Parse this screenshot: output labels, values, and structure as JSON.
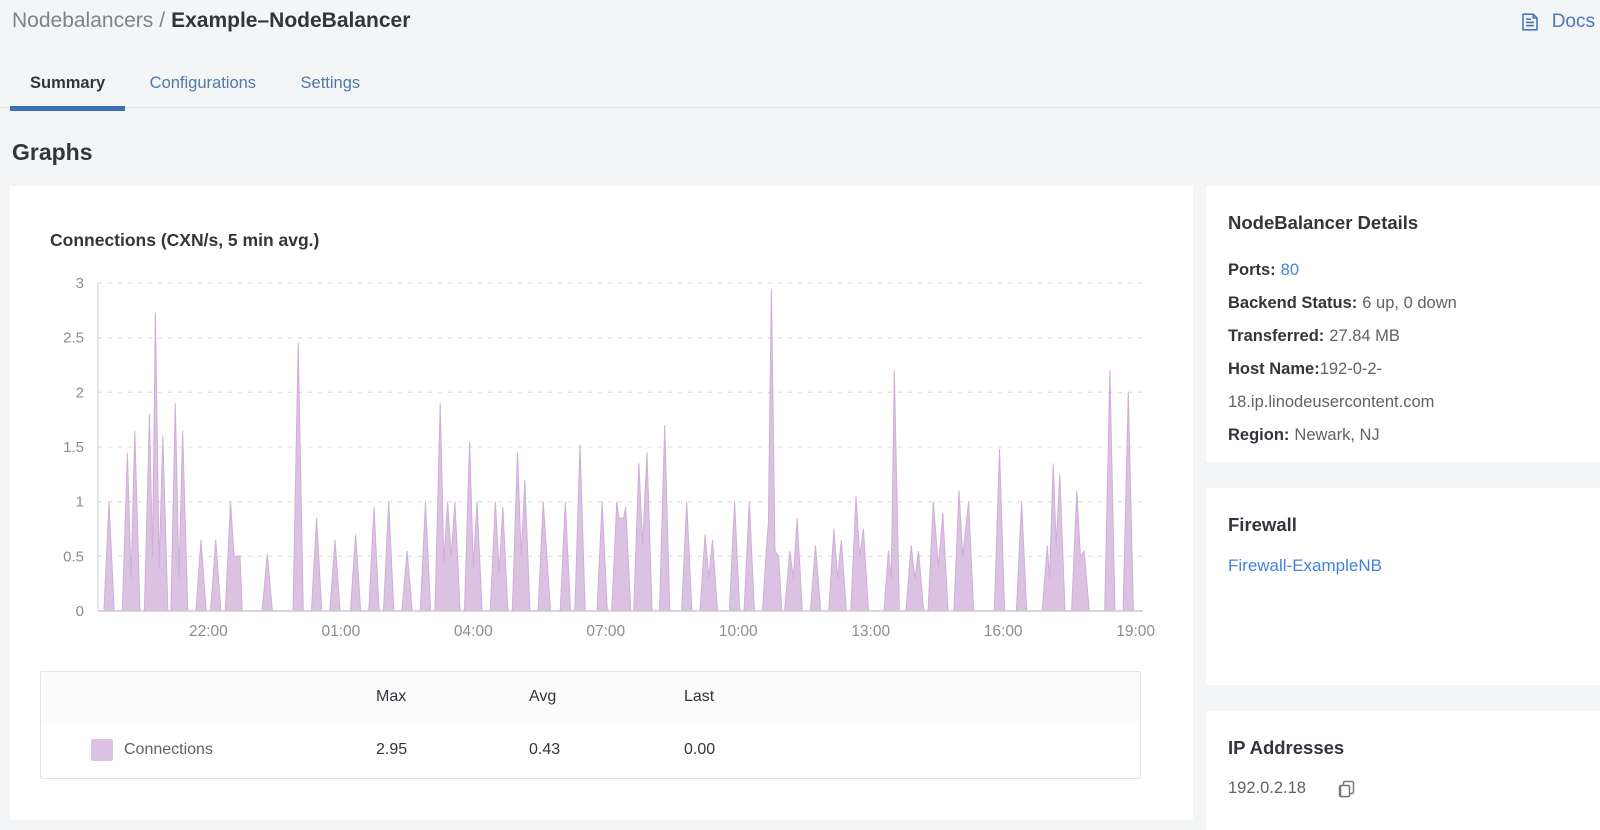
{
  "breadcrumb": {
    "section": "Nodebalancers",
    "separator": "/",
    "entity": "Example–NodeBalancer"
  },
  "docs": {
    "label": "Docs"
  },
  "tabs": [
    {
      "label": "Summary",
      "active": true
    },
    {
      "label": "Configurations",
      "active": false
    },
    {
      "label": "Settings",
      "active": false
    }
  ],
  "section_title": "Graphs",
  "chart": {
    "title": "Connections (CXN/s, 5 min avg.)",
    "legend": {
      "columns": {
        "max": "Max",
        "avg": "Avg",
        "last": "Last"
      },
      "row": {
        "label": "Connections",
        "swatch": "#dcc2e2",
        "max": "2.95",
        "avg": "0.43",
        "last": "0.00"
      }
    }
  },
  "chart_data": {
    "type": "area",
    "title": "Connections (CXN/s, 5 min avg.)",
    "series_name": "Connections",
    "unit": "CXN/s",
    "ylim": [
      0,
      3
    ],
    "y_ticks": [
      0,
      0.5,
      1,
      1.5,
      2,
      2.5,
      3
    ],
    "x_axis": "time of day, 24h window, start 19:30",
    "x_max_minutes": 1420,
    "x_ticks": [
      {
        "label": "22:00",
        "t": 150
      },
      {
        "label": "01:00",
        "t": 330
      },
      {
        "label": "04:00",
        "t": 510
      },
      {
        "label": "07:00",
        "t": 690
      },
      {
        "label": "10:00",
        "t": 870
      },
      {
        "label": "13:00",
        "t": 1050
      },
      {
        "label": "16:00",
        "t": 1230
      },
      {
        "label": "19:00",
        "t": 1410
      }
    ],
    "stats": {
      "max": 2.95,
      "avg": 0.43,
      "last": 0.0
    },
    "colors": {
      "fill": "#dcc2e2",
      "line": "#cfaed8",
      "grid": "#e0e2e5",
      "axis": "#c9cbce",
      "tick_text": "#8a8d92"
    },
    "grid": true,
    "legend_position": "bottom-table",
    "points": [
      [
        0,
        0
      ],
      [
        8,
        0
      ],
      [
        15,
        1.0
      ],
      [
        22,
        0
      ],
      [
        33,
        0
      ],
      [
        40,
        1.45
      ],
      [
        45,
        0.3
      ],
      [
        50,
        1.65
      ],
      [
        57,
        0
      ],
      [
        63,
        0
      ],
      [
        70,
        1.8
      ],
      [
        74,
        0.5
      ],
      [
        78,
        2.73
      ],
      [
        83,
        0.4
      ],
      [
        88,
        1.6
      ],
      [
        95,
        0
      ],
      [
        99,
        0
      ],
      [
        105,
        1.9
      ],
      [
        110,
        0.3
      ],
      [
        115,
        1.65
      ],
      [
        122,
        0
      ],
      [
        133,
        0
      ],
      [
        140,
        0.65
      ],
      [
        147,
        0
      ],
      [
        153,
        0
      ],
      [
        160,
        0.65
      ],
      [
        167,
        0
      ],
      [
        173,
        0
      ],
      [
        180,
        1.0
      ],
      [
        185,
        0.5
      ],
      [
        193,
        0.5
      ],
      [
        196,
        0
      ],
      [
        223,
        0
      ],
      [
        230,
        0.52
      ],
      [
        237,
        0
      ],
      [
        265,
        0
      ],
      [
        272,
        2.45
      ],
      [
        279,
        0
      ],
      [
        290,
        0
      ],
      [
        297,
        0.85
      ],
      [
        304,
        0
      ],
      [
        315,
        0
      ],
      [
        322,
        0.65
      ],
      [
        329,
        0
      ],
      [
        343,
        0
      ],
      [
        350,
        0.7
      ],
      [
        357,
        0
      ],
      [
        368,
        0
      ],
      [
        375,
        0.95
      ],
      [
        382,
        0
      ],
      [
        388,
        0
      ],
      [
        395,
        1.0
      ],
      [
        402,
        0
      ],
      [
        413,
        0
      ],
      [
        420,
        0.55
      ],
      [
        427,
        0
      ],
      [
        438,
        0
      ],
      [
        445,
        1.0
      ],
      [
        452,
        0
      ],
      [
        458,
        0
      ],
      [
        465,
        1.9
      ],
      [
        470,
        0.45
      ],
      [
        475,
        1.0
      ],
      [
        480,
        0.5
      ],
      [
        485,
        1.0
      ],
      [
        492,
        0
      ],
      [
        498,
        0
      ],
      [
        505,
        1.55
      ],
      [
        510,
        0.4
      ],
      [
        515,
        1.0
      ],
      [
        522,
        0
      ],
      [
        533,
        0
      ],
      [
        540,
        1.0
      ],
      [
        545,
        0.35
      ],
      [
        550,
        0.95
      ],
      [
        557,
        0
      ],
      [
        563,
        0
      ],
      [
        570,
        1.45
      ],
      [
        575,
        0.5
      ],
      [
        580,
        1.2
      ],
      [
        587,
        0
      ],
      [
        598,
        0
      ],
      [
        605,
        1.0
      ],
      [
        615,
        0
      ],
      [
        628,
        0
      ],
      [
        635,
        1.0
      ],
      [
        642,
        0
      ],
      [
        648,
        0
      ],
      [
        655,
        1.52
      ],
      [
        662,
        0
      ],
      [
        678,
        0
      ],
      [
        685,
        1.0
      ],
      [
        692,
        0
      ],
      [
        698,
        0
      ],
      [
        705,
        1.0
      ],
      [
        708,
        0.85
      ],
      [
        714,
        0.85
      ],
      [
        717,
        0.95
      ],
      [
        724,
        0
      ],
      [
        728,
        0
      ],
      [
        735,
        1.35
      ],
      [
        740,
        0.6
      ],
      [
        746,
        1.45
      ],
      [
        753,
        0
      ],
      [
        763,
        0
      ],
      [
        770,
        1.7
      ],
      [
        777,
        0
      ],
      [
        793,
        0
      ],
      [
        800,
        1.0
      ],
      [
        807,
        0
      ],
      [
        818,
        0
      ],
      [
        825,
        0.7
      ],
      [
        830,
        0.3
      ],
      [
        835,
        0.65
      ],
      [
        842,
        0
      ],
      [
        858,
        0
      ],
      [
        865,
        1.0
      ],
      [
        872,
        0
      ],
      [
        878,
        0
      ],
      [
        885,
        1.0
      ],
      [
        892,
        0
      ],
      [
        903,
        0
      ],
      [
        908,
        0.55
      ],
      [
        911,
        0.8
      ],
      [
        915,
        2.95
      ],
      [
        920,
        0.55
      ],
      [
        925,
        0.5
      ],
      [
        929,
        0
      ],
      [
        933,
        0
      ],
      [
        940,
        0.55
      ],
      [
        945,
        0.3
      ],
      [
        950,
        0.85
      ],
      [
        957,
        0
      ],
      [
        968,
        0
      ],
      [
        975,
        0.6
      ],
      [
        982,
        0
      ],
      [
        993,
        0
      ],
      [
        1000,
        0.75
      ],
      [
        1005,
        0.3
      ],
      [
        1010,
        0.65
      ],
      [
        1017,
        0
      ],
      [
        1023,
        0
      ],
      [
        1030,
        1.05
      ],
      [
        1035,
        0.5
      ],
      [
        1040,
        0.75
      ],
      [
        1047,
        0
      ],
      [
        1068,
        0
      ],
      [
        1074,
        0.55
      ],
      [
        1078,
        0.3
      ],
      [
        1082,
        2.2
      ],
      [
        1089,
        0
      ],
      [
        1098,
        0
      ],
      [
        1105,
        0.6
      ],
      [
        1110,
        0.3
      ],
      [
        1115,
        0.55
      ],
      [
        1122,
        0
      ],
      [
        1128,
        0
      ],
      [
        1135,
        1.0
      ],
      [
        1142,
        0.4
      ],
      [
        1148,
        0.9
      ],
      [
        1155,
        0
      ],
      [
        1163,
        0
      ],
      [
        1170,
        1.1
      ],
      [
        1175,
        0.5
      ],
      [
        1183,
        1.0
      ],
      [
        1190,
        0
      ],
      [
        1218,
        0
      ],
      [
        1225,
        1.48
      ],
      [
        1232,
        0
      ],
      [
        1248,
        0
      ],
      [
        1255,
        1.0
      ],
      [
        1262,
        0
      ],
      [
        1283,
        0
      ],
      [
        1290,
        0.6
      ],
      [
        1293,
        0.3
      ],
      [
        1298,
        1.35
      ],
      [
        1302,
        0.6
      ],
      [
        1307,
        1.25
      ],
      [
        1314,
        0
      ],
      [
        1323,
        0
      ],
      [
        1330,
        1.1
      ],
      [
        1335,
        0.5
      ],
      [
        1340,
        0.55
      ],
      [
        1347,
        0
      ],
      [
        1368,
        0
      ],
      [
        1375,
        2.2
      ],
      [
        1382,
        0
      ],
      [
        1393,
        0
      ],
      [
        1400,
        2.0
      ],
      [
        1407,
        0
      ],
      [
        1420,
        0
      ]
    ]
  },
  "sidebar": {
    "details": {
      "title": "NodeBalancer Details",
      "rows": [
        {
          "label": "Ports:",
          "value": "80"
        },
        {
          "label": "Backend Status:",
          "value": "6 up, 0 down"
        },
        {
          "label": "Transferred:",
          "value": "27.84 MB"
        },
        {
          "label": "Host Name:",
          "value": "192-0-2-18.ip.linodeusercontent.com"
        },
        {
          "label": "Region:",
          "value": "Newark, NJ"
        }
      ]
    },
    "firewall": {
      "title": "Firewall",
      "link": "Firewall-ExampleNB"
    },
    "ips": {
      "title": "IP Addresses",
      "address": "192.0.2.18"
    }
  }
}
